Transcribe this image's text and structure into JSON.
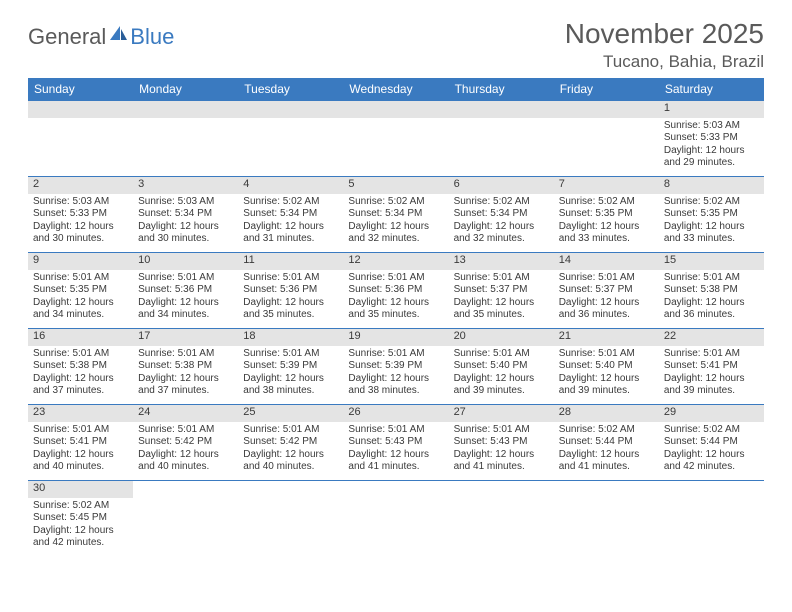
{
  "logo": {
    "general": "General",
    "blue": "Blue"
  },
  "title": "November 2025",
  "location": "Tucano, Bahia, Brazil",
  "colors": {
    "header_bg": "#3a7ac0",
    "header_text": "#ffffff",
    "daynum_bg": "#e4e4e4",
    "border": "#3a7ac0",
    "text": "#3a3a3a",
    "page_bg": "#ffffff"
  },
  "days_of_week": [
    "Sunday",
    "Monday",
    "Tuesday",
    "Wednesday",
    "Thursday",
    "Friday",
    "Saturday"
  ],
  "leading_blanks": 6,
  "days": [
    {
      "n": 1,
      "sr": "5:03 AM",
      "ss": "5:33 PM",
      "dl": "12 hours and 29 minutes."
    },
    {
      "n": 2,
      "sr": "5:03 AM",
      "ss": "5:33 PM",
      "dl": "12 hours and 30 minutes."
    },
    {
      "n": 3,
      "sr": "5:03 AM",
      "ss": "5:34 PM",
      "dl": "12 hours and 30 minutes."
    },
    {
      "n": 4,
      "sr": "5:02 AM",
      "ss": "5:34 PM",
      "dl": "12 hours and 31 minutes."
    },
    {
      "n": 5,
      "sr": "5:02 AM",
      "ss": "5:34 PM",
      "dl": "12 hours and 32 minutes."
    },
    {
      "n": 6,
      "sr": "5:02 AM",
      "ss": "5:34 PM",
      "dl": "12 hours and 32 minutes."
    },
    {
      "n": 7,
      "sr": "5:02 AM",
      "ss": "5:35 PM",
      "dl": "12 hours and 33 minutes."
    },
    {
      "n": 8,
      "sr": "5:02 AM",
      "ss": "5:35 PM",
      "dl": "12 hours and 33 minutes."
    },
    {
      "n": 9,
      "sr": "5:01 AM",
      "ss": "5:35 PM",
      "dl": "12 hours and 34 minutes."
    },
    {
      "n": 10,
      "sr": "5:01 AM",
      "ss": "5:36 PM",
      "dl": "12 hours and 34 minutes."
    },
    {
      "n": 11,
      "sr": "5:01 AM",
      "ss": "5:36 PM",
      "dl": "12 hours and 35 minutes."
    },
    {
      "n": 12,
      "sr": "5:01 AM",
      "ss": "5:36 PM",
      "dl": "12 hours and 35 minutes."
    },
    {
      "n": 13,
      "sr": "5:01 AM",
      "ss": "5:37 PM",
      "dl": "12 hours and 35 minutes."
    },
    {
      "n": 14,
      "sr": "5:01 AM",
      "ss": "5:37 PM",
      "dl": "12 hours and 36 minutes."
    },
    {
      "n": 15,
      "sr": "5:01 AM",
      "ss": "5:38 PM",
      "dl": "12 hours and 36 minutes."
    },
    {
      "n": 16,
      "sr": "5:01 AM",
      "ss": "5:38 PM",
      "dl": "12 hours and 37 minutes."
    },
    {
      "n": 17,
      "sr": "5:01 AM",
      "ss": "5:38 PM",
      "dl": "12 hours and 37 minutes."
    },
    {
      "n": 18,
      "sr": "5:01 AM",
      "ss": "5:39 PM",
      "dl": "12 hours and 38 minutes."
    },
    {
      "n": 19,
      "sr": "5:01 AM",
      "ss": "5:39 PM",
      "dl": "12 hours and 38 minutes."
    },
    {
      "n": 20,
      "sr": "5:01 AM",
      "ss": "5:40 PM",
      "dl": "12 hours and 39 minutes."
    },
    {
      "n": 21,
      "sr": "5:01 AM",
      "ss": "5:40 PM",
      "dl": "12 hours and 39 minutes."
    },
    {
      "n": 22,
      "sr": "5:01 AM",
      "ss": "5:41 PM",
      "dl": "12 hours and 39 minutes."
    },
    {
      "n": 23,
      "sr": "5:01 AM",
      "ss": "5:41 PM",
      "dl": "12 hours and 40 minutes."
    },
    {
      "n": 24,
      "sr": "5:01 AM",
      "ss": "5:42 PM",
      "dl": "12 hours and 40 minutes."
    },
    {
      "n": 25,
      "sr": "5:01 AM",
      "ss": "5:42 PM",
      "dl": "12 hours and 40 minutes."
    },
    {
      "n": 26,
      "sr": "5:01 AM",
      "ss": "5:43 PM",
      "dl": "12 hours and 41 minutes."
    },
    {
      "n": 27,
      "sr": "5:01 AM",
      "ss": "5:43 PM",
      "dl": "12 hours and 41 minutes."
    },
    {
      "n": 28,
      "sr": "5:02 AM",
      "ss": "5:44 PM",
      "dl": "12 hours and 41 minutes."
    },
    {
      "n": 29,
      "sr": "5:02 AM",
      "ss": "5:44 PM",
      "dl": "12 hours and 42 minutes."
    },
    {
      "n": 30,
      "sr": "5:02 AM",
      "ss": "5:45 PM",
      "dl": "12 hours and 42 minutes."
    }
  ],
  "labels": {
    "sunrise": "Sunrise: ",
    "sunset": "Sunset: ",
    "daylight": "Daylight: "
  }
}
